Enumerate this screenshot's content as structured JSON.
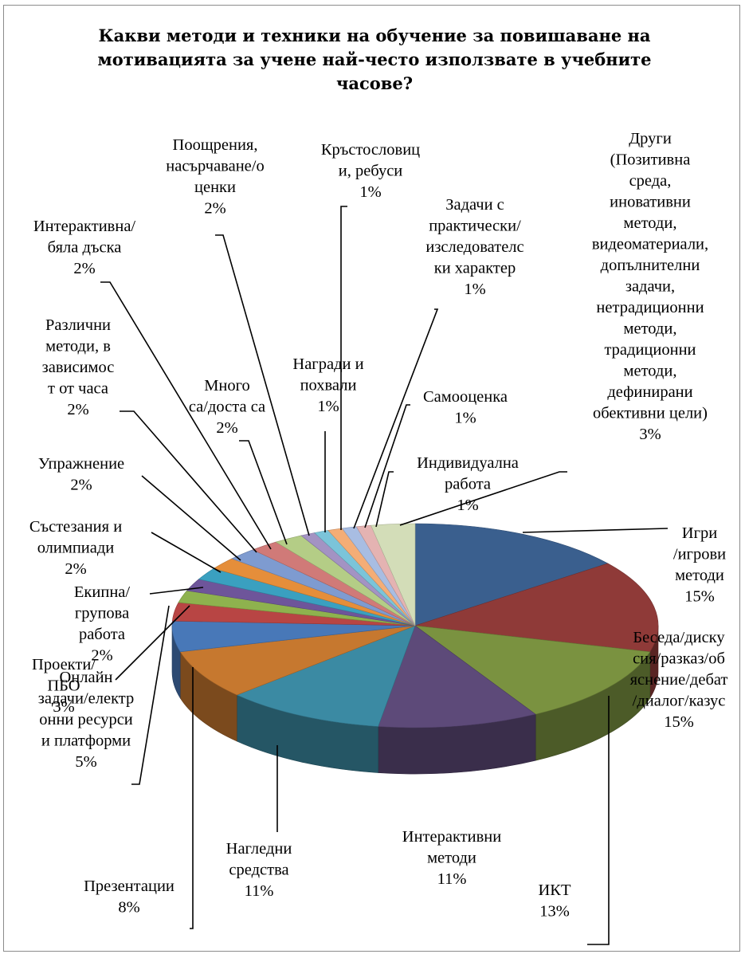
{
  "chart_data": {
    "type": "pie",
    "title": "Какви методи и техники на обучение за повишаване на мотивацията за учене  най-често използвате в учебните часове?",
    "slices": [
      {
        "label": "Игри /игрови методи",
        "value": 15,
        "pct": "15%",
        "color": "#3a5f8e"
      },
      {
        "label": "Беседа/дискусия/разказ/обяснение/дебат/диалог/казус",
        "value": 15,
        "pct": "15%",
        "color": "#8f3a38"
      },
      {
        "label": "ИКТ",
        "value": 13,
        "pct": "13%",
        "color": "#7a9240"
      },
      {
        "label": "Интерактивни методи",
        "value": 11,
        "pct": "11%",
        "color": "#5d4a79"
      },
      {
        "label": "Нагледни средства",
        "value": 11,
        "pct": "11%",
        "color": "#3b8aa3"
      },
      {
        "label": "Презентации",
        "value": 8,
        "pct": "8%",
        "color": "#c6782f"
      },
      {
        "label": "Онлайн задачи/електронни ресурси и платформи",
        "value": 5,
        "pct": "5%",
        "color": "#4878b8"
      },
      {
        "label": "Проекти/ ПБО",
        "value": 3,
        "pct": "3%",
        "color": "#b84544"
      },
      {
        "label": "Екипна/ групова работа",
        "value": 2,
        "pct": "2%",
        "color": "#8eb24e"
      },
      {
        "label": "Състезания и олимпиади",
        "value": 2,
        "pct": "2%",
        "color": "#6e559a"
      },
      {
        "label": "Упражнение",
        "value": 2,
        "pct": "2%",
        "color": "#3aa0c0"
      },
      {
        "label": "Различни методи, в зависимост от часа",
        "value": 2,
        "pct": "2%",
        "color": "#e58e3a"
      },
      {
        "label": "Много са/доста са",
        "value": 2,
        "pct": "2%",
        "color": "#7e9bd0"
      },
      {
        "label": "Интерактивна/ бяла дъска",
        "value": 2,
        "pct": "2%",
        "color": "#d07a78"
      },
      {
        "label": "Поощрения, насърчаване/оценки",
        "value": 2,
        "pct": "2%",
        "color": "#b4cd86"
      },
      {
        "label": "Награди и похвали",
        "value": 1,
        "pct": "1%",
        "color": "#a393c3"
      },
      {
        "label": "Кръстословици, ребуси",
        "value": 1,
        "pct": "1%",
        "color": "#7bc4d9"
      },
      {
        "label": "Задачи с практически/изследователски характер",
        "value": 1,
        "pct": "1%",
        "color": "#f4ad76"
      },
      {
        "label": "Самооценка",
        "value": 1,
        "pct": "1%",
        "color": "#a8bde2"
      },
      {
        "label": "Индивидуална работа",
        "value": 1,
        "pct": "1%",
        "color": "#e4b3b2"
      },
      {
        "label": "Други (Позитивна среда, иновативни методи, видеоматериали, допълнителни задачи, нетрадиционни методи, традиционни методи, дефинирани обективни цели)",
        "value": 3,
        "pct": "3%",
        "color": "#d3ddb8"
      }
    ],
    "label_lines": [
      [
        "Игри",
        "/игрови",
        "методи",
        "15%"
      ],
      [
        "Беседа/диску",
        "сия/разказ/об",
        "яснение/дебат",
        "/диалог/казус",
        "15%"
      ],
      [
        "ИКТ",
        "13%"
      ],
      [
        "Интерактивни",
        "методи",
        "11%"
      ],
      [
        "Нагледни",
        "средства",
        "11%"
      ],
      [
        "Презентации",
        "8%"
      ],
      [
        "Онлайн",
        "задачи/електр",
        "онни ресурси",
        "и платформи",
        "5%"
      ],
      [
        "Проекти/",
        "ПБО",
        "3%"
      ],
      [
        "Екипна/",
        "групова",
        "работа",
        "2%"
      ],
      [
        "Състезания и",
        "олимпиади",
        "2%"
      ],
      [
        "Упражнение",
        "2%"
      ],
      [
        "Различни",
        "методи, в",
        "зависимос",
        "т от часа",
        "2%"
      ],
      [
        "Много",
        "са/доста са",
        "2%"
      ],
      [
        "Интерактивна/",
        "бяла дъска",
        "2%"
      ],
      [
        "Поощрения,",
        "насърчаване/о",
        "ценки",
        "2%"
      ],
      [
        "Награди и",
        "похвали",
        "1%"
      ],
      [
        "Кръстословиц",
        "и, ребуси",
        "1%"
      ],
      [
        "Задачи с",
        "практически/",
        "изследователс",
        "ки характер",
        "1%"
      ],
      [
        "Самооценка",
        "1%"
      ],
      [
        "Индивидуална",
        "работа",
        "1%"
      ],
      [
        "Други",
        "(Позитивна",
        "среда,",
        "иновативни",
        "методи,",
        "видеоматериали,",
        "допълнителни",
        "задачи,",
        "нетрадиционни",
        "методи,",
        "традиционни",
        "методи,",
        "дефинирани",
        "обективни цели)",
        "3%"
      ]
    ]
  }
}
